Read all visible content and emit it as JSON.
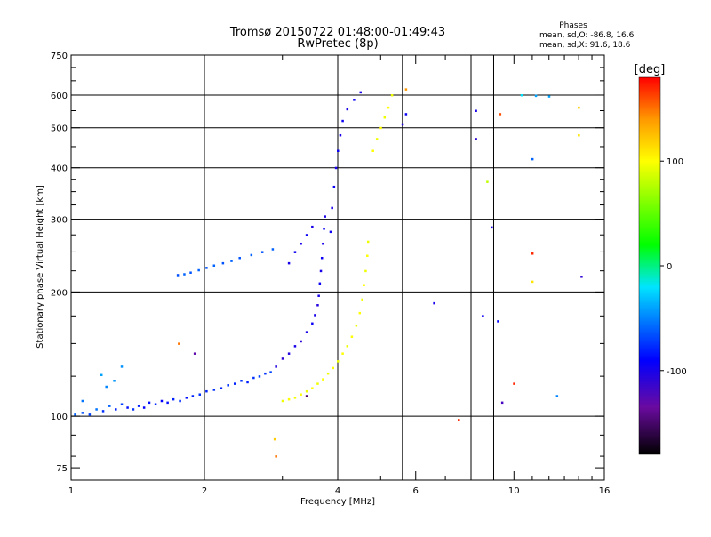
{
  "chart_data": {
    "type": "scatter",
    "title": "Tromsø 20150722 01:48:00-01:49:43",
    "subtitle": "RwPretec (8p)",
    "xlabel": "Frequency [MHz]",
    "ylabel": "Stationary phase Virtual Height [km]",
    "x_scale": "log",
    "y_scale": "log",
    "xlim": [
      1,
      16
    ],
    "ylim": [
      70,
      750
    ],
    "x_ticks": [
      1,
      2,
      4,
      6,
      10,
      16
    ],
    "x_tick_labels": [
      "1",
      "2",
      "4",
      "6",
      "10",
      "16"
    ],
    "x_minor_ticks": [
      3,
      5,
      7,
      8,
      9,
      11,
      12,
      13,
      14,
      15
    ],
    "x_grid": [
      2,
      4,
      5.6,
      8,
      9
    ],
    "y_ticks": [
      75,
      100,
      200,
      300,
      400,
      500,
      600,
      750
    ],
    "y_tick_labels": [
      "75",
      "100",
      "200",
      "300",
      "400",
      "500",
      "600",
      "750"
    ],
    "y_minor_ticks": [
      80,
      90,
      125,
      150,
      175,
      225,
      250,
      275,
      325,
      350,
      375,
      450,
      550,
      650,
      700
    ],
    "y_grid": [
      100,
      200,
      300,
      400,
      500,
      600
    ],
    "grid": true,
    "phases_box": {
      "title": "Phases",
      "line_o": "mean, sd,O: -86.8, 16.6",
      "line_x": "mean, sd,X:  91.6, 18.6"
    },
    "colorbar": {
      "label": "[deg]",
      "range": [
        -180,
        180
      ],
      "ticks": [
        100,
        0,
        -100
      ],
      "tick_labels": [
        "100",
        "0",
        "-100"
      ],
      "stops": [
        {
          "v": -180,
          "color": "#000000"
        },
        {
          "v": -135,
          "color": "#6a0aa0"
        },
        {
          "v": -90,
          "color": "#0000ff"
        },
        {
          "v": -20,
          "color": "#00e5ff"
        },
        {
          "v": 20,
          "color": "#00ff00"
        },
        {
          "v": 100,
          "color": "#ffff00"
        },
        {
          "v": 140,
          "color": "#ff9900"
        },
        {
          "v": 180,
          "color": "#ff0000"
        }
      ]
    },
    "series": [
      {
        "points": [
          {
            "x": 1.02,
            "y": 101,
            "phase": -60
          },
          {
            "x": 1.06,
            "y": 102,
            "phase": -65
          },
          {
            "x": 1.1,
            "y": 101,
            "phase": -70
          },
          {
            "x": 1.14,
            "y": 104,
            "phase": -55
          },
          {
            "x": 1.18,
            "y": 103,
            "phase": -75
          },
          {
            "x": 1.22,
            "y": 106,
            "phase": -60
          },
          {
            "x": 1.26,
            "y": 104,
            "phase": -80
          },
          {
            "x": 1.3,
            "y": 107,
            "phase": -70
          },
          {
            "x": 1.34,
            "y": 105,
            "phase": -85
          },
          {
            "x": 1.38,
            "y": 104,
            "phase": -75
          },
          {
            "x": 1.42,
            "y": 106,
            "phase": -80
          },
          {
            "x": 1.46,
            "y": 105,
            "phase": -90
          },
          {
            "x": 1.5,
            "y": 108,
            "phase": -85
          },
          {
            "x": 1.55,
            "y": 107,
            "phase": -80
          },
          {
            "x": 1.6,
            "y": 109,
            "phase": -90
          },
          {
            "x": 1.65,
            "y": 108,
            "phase": -85
          },
          {
            "x": 1.7,
            "y": 110,
            "phase": -80
          },
          {
            "x": 1.76,
            "y": 109,
            "phase": -75
          },
          {
            "x": 1.82,
            "y": 111,
            "phase": -85
          },
          {
            "x": 1.88,
            "y": 112,
            "phase": -80
          },
          {
            "x": 1.95,
            "y": 113,
            "phase": -75
          },
          {
            "x": 2.02,
            "y": 115,
            "phase": -80
          },
          {
            "x": 2.1,
            "y": 116,
            "phase": -75
          },
          {
            "x": 2.18,
            "y": 117,
            "phase": -80
          },
          {
            "x": 2.26,
            "y": 119,
            "phase": -75
          },
          {
            "x": 2.34,
            "y": 120,
            "phase": -80
          },
          {
            "x": 2.42,
            "y": 122,
            "phase": -75
          },
          {
            "x": 2.5,
            "y": 121,
            "phase": -80
          },
          {
            "x": 2.58,
            "y": 124,
            "phase": -75
          },
          {
            "x": 2.66,
            "y": 125,
            "phase": -70
          },
          {
            "x": 2.74,
            "y": 127,
            "phase": -75
          },
          {
            "x": 2.82,
            "y": 128,
            "phase": -70
          },
          {
            "x": 1.2,
            "y": 118,
            "phase": -50
          },
          {
            "x": 1.25,
            "y": 122,
            "phase": -45
          },
          {
            "x": 1.17,
            "y": 126,
            "phase": -40
          },
          {
            "x": 1.3,
            "y": 132,
            "phase": -45
          },
          {
            "x": 1.06,
            "y": 109,
            "phase": -55
          },
          {
            "x": 2.9,
            "y": 132,
            "phase": -105
          },
          {
            "x": 3.0,
            "y": 138,
            "phase": -110
          },
          {
            "x": 3.1,
            "y": 142,
            "phase": -105
          },
          {
            "x": 3.2,
            "y": 148,
            "phase": -100
          },
          {
            "x": 3.3,
            "y": 152,
            "phase": -110
          },
          {
            "x": 3.4,
            "y": 160,
            "phase": -100
          },
          {
            "x": 3.5,
            "y": 168,
            "phase": -95
          },
          {
            "x": 3.55,
            "y": 176,
            "phase": -100
          },
          {
            "x": 3.6,
            "y": 186,
            "phase": -105
          },
          {
            "x": 3.62,
            "y": 196,
            "phase": -100
          },
          {
            "x": 3.64,
            "y": 210,
            "phase": -95
          },
          {
            "x": 3.66,
            "y": 225,
            "phase": -100
          },
          {
            "x": 3.68,
            "y": 242,
            "phase": -95
          },
          {
            "x": 3.7,
            "y": 262,
            "phase": -100
          },
          {
            "x": 3.72,
            "y": 285,
            "phase": -95
          },
          {
            "x": 3.74,
            "y": 305,
            "phase": -100
          },
          {
            "x": 3.85,
            "y": 280,
            "phase": -95
          },
          {
            "x": 3.88,
            "y": 320,
            "phase": -100
          },
          {
            "x": 3.92,
            "y": 360,
            "phase": -95
          },
          {
            "x": 3.96,
            "y": 400,
            "phase": -100
          },
          {
            "x": 4.0,
            "y": 440,
            "phase": -95
          },
          {
            "x": 4.05,
            "y": 480,
            "phase": -100
          },
          {
            "x": 4.1,
            "y": 520,
            "phase": -95
          },
          {
            "x": 4.2,
            "y": 555,
            "phase": -100
          },
          {
            "x": 4.35,
            "y": 585,
            "phase": -95
          },
          {
            "x": 4.5,
            "y": 610,
            "phase": -100
          },
          {
            "x": 3.1,
            "y": 235,
            "phase": -100
          },
          {
            "x": 3.2,
            "y": 250,
            "phase": -95
          },
          {
            "x": 3.3,
            "y": 262,
            "phase": -100
          },
          {
            "x": 3.4,
            "y": 275,
            "phase": -95
          },
          {
            "x": 3.5,
            "y": 288,
            "phase": -100
          },
          {
            "x": 1.74,
            "y": 220,
            "phase": -65
          },
          {
            "x": 1.8,
            "y": 221,
            "phase": -60
          },
          {
            "x": 1.86,
            "y": 223,
            "phase": -65
          },
          {
            "x": 1.94,
            "y": 226,
            "phase": -60
          },
          {
            "x": 2.02,
            "y": 229,
            "phase": -65
          },
          {
            "x": 2.1,
            "y": 232,
            "phase": -60
          },
          {
            "x": 2.2,
            "y": 235,
            "phase": -65
          },
          {
            "x": 2.3,
            "y": 238,
            "phase": -60
          },
          {
            "x": 2.4,
            "y": 242,
            "phase": -65
          },
          {
            "x": 2.55,
            "y": 246,
            "phase": -60
          },
          {
            "x": 2.7,
            "y": 250,
            "phase": -65
          },
          {
            "x": 2.85,
            "y": 254,
            "phase": -60
          },
          {
            "x": 3.0,
            "y": 109,
            "phase": 95
          },
          {
            "x": 3.1,
            "y": 110,
            "phase": 100
          },
          {
            "x": 3.2,
            "y": 111,
            "phase": 95
          },
          {
            "x": 3.3,
            "y": 113,
            "phase": 100
          },
          {
            "x": 3.4,
            "y": 115,
            "phase": 95
          },
          {
            "x": 3.5,
            "y": 117,
            "phase": 100
          },
          {
            "x": 3.6,
            "y": 120,
            "phase": 95
          },
          {
            "x": 3.7,
            "y": 123,
            "phase": 100
          },
          {
            "x": 3.8,
            "y": 127,
            "phase": 95
          },
          {
            "x": 3.9,
            "y": 131,
            "phase": 100
          },
          {
            "x": 4.0,
            "y": 136,
            "phase": 95
          },
          {
            "x": 4.1,
            "y": 142,
            "phase": 100
          },
          {
            "x": 4.2,
            "y": 148,
            "phase": 95
          },
          {
            "x": 4.3,
            "y": 156,
            "phase": 100
          },
          {
            "x": 4.4,
            "y": 166,
            "phase": 95
          },
          {
            "x": 4.48,
            "y": 178,
            "phase": 100
          },
          {
            "x": 4.54,
            "y": 192,
            "phase": 95
          },
          {
            "x": 4.58,
            "y": 208,
            "phase": 100
          },
          {
            "x": 4.62,
            "y": 225,
            "phase": 95
          },
          {
            "x": 4.66,
            "y": 245,
            "phase": 100
          },
          {
            "x": 4.68,
            "y": 265,
            "phase": 95
          },
          {
            "x": 4.8,
            "y": 440,
            "phase": 100
          },
          {
            "x": 4.9,
            "y": 470,
            "phase": 95
          },
          {
            "x": 5.0,
            "y": 500,
            "phase": 100
          },
          {
            "x": 5.1,
            "y": 530,
            "phase": 95
          },
          {
            "x": 5.2,
            "y": 560,
            "phase": 100
          },
          {
            "x": 5.3,
            "y": 600,
            "phase": 95
          },
          {
            "x": 5.6,
            "y": 510,
            "phase": -100
          },
          {
            "x": 5.7,
            "y": 540,
            "phase": -95
          },
          {
            "x": 5.7,
            "y": 620,
            "phase": 140
          },
          {
            "x": 1.75,
            "y": 150,
            "phase": 150
          },
          {
            "x": 1.9,
            "y": 142,
            "phase": -130
          },
          {
            "x": 2.9,
            "y": 80,
            "phase": 150
          },
          {
            "x": 2.88,
            "y": 88,
            "phase": 120
          },
          {
            "x": 3.4,
            "y": 112,
            "phase": -150
          },
          {
            "x": 6.6,
            "y": 188,
            "phase": -100
          },
          {
            "x": 7.5,
            "y": 98,
            "phase": 170
          },
          {
            "x": 8.2,
            "y": 470,
            "phase": -110
          },
          {
            "x": 8.2,
            "y": 550,
            "phase": -100
          },
          {
            "x": 8.5,
            "y": 175,
            "phase": -95
          },
          {
            "x": 8.9,
            "y": 287,
            "phase": -100
          },
          {
            "x": 8.7,
            "y": 370,
            "phase": 80
          },
          {
            "x": 9.3,
            "y": 540,
            "phase": 160
          },
          {
            "x": 9.2,
            "y": 170,
            "phase": -90
          },
          {
            "x": 9.4,
            "y": 108,
            "phase": -120
          },
          {
            "x": 10.0,
            "y": 120,
            "phase": 170
          },
          {
            "x": 11.0,
            "y": 420,
            "phase": -60
          },
          {
            "x": 11.0,
            "y": 248,
            "phase": 170
          },
          {
            "x": 11.2,
            "y": 598,
            "phase": -40
          },
          {
            "x": 11.0,
            "y": 212,
            "phase": 110
          },
          {
            "x": 12.0,
            "y": 596,
            "phase": -40
          },
          {
            "x": 12.5,
            "y": 112,
            "phase": -50
          },
          {
            "x": 14.0,
            "y": 560,
            "phase": 120
          },
          {
            "x": 14.0,
            "y": 480,
            "phase": 110
          },
          {
            "x": 14.2,
            "y": 218,
            "phase": -110
          },
          {
            "x": 10.4,
            "y": 600,
            "phase": -20
          }
        ]
      }
    ]
  }
}
